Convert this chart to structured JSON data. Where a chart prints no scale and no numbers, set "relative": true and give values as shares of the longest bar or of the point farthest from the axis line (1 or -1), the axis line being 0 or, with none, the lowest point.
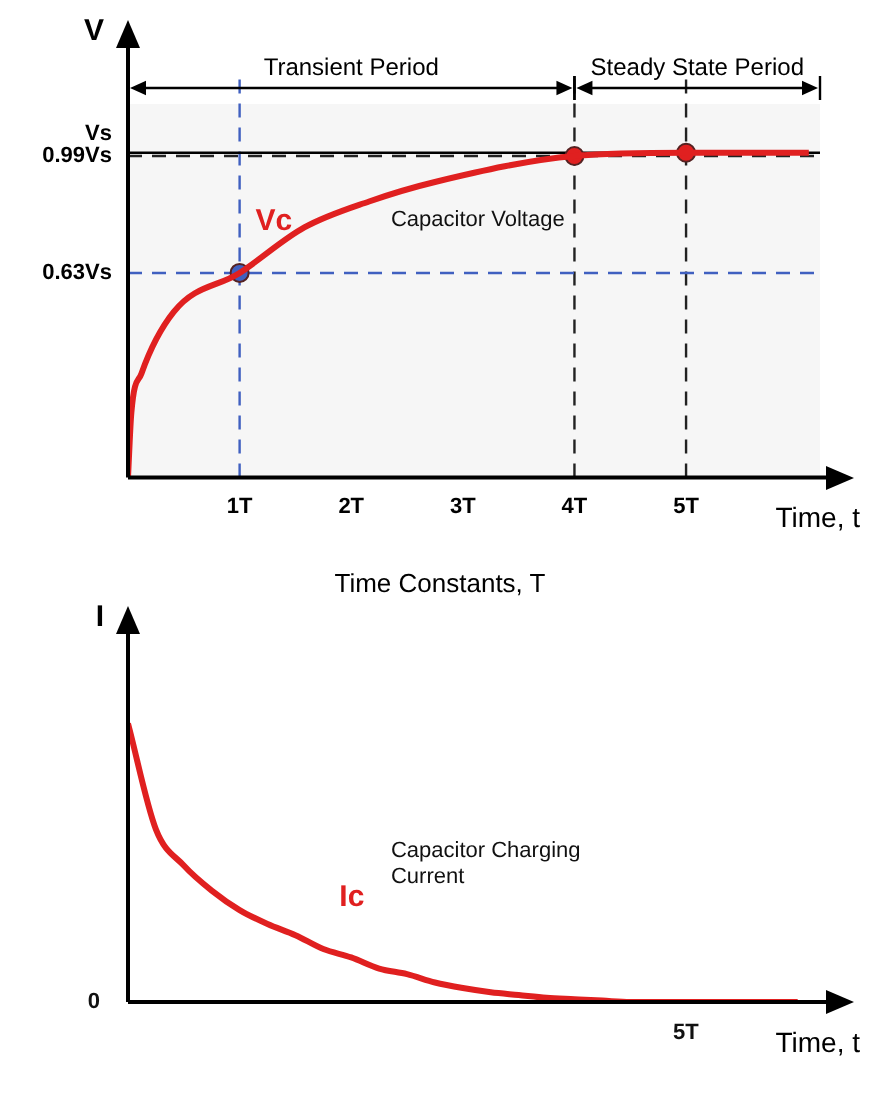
{
  "chart_data": [
    {
      "type": "line",
      "xlabel": "Time, t",
      "ylabel": "V",
      "annotations": [
        "Capacitor Voltage",
        "Time Constants, T"
      ],
      "xlim": [
        0,
        6.2
      ],
      "xticks": [
        {
          "value": 1,
          "label": "1T"
        },
        {
          "value": 2,
          "label": "2T"
        },
        {
          "value": 3,
          "label": "3T"
        },
        {
          "value": 4,
          "label": "4T"
        },
        {
          "value": 5,
          "label": "5T"
        }
      ],
      "ylim": [
        0,
        1.15
      ],
      "yticks": [
        {
          "value": 0.63,
          "label": "0.63Vs"
        },
        {
          "value": 0.99,
          "label": "0.99Vs"
        }
      ],
      "series": [
        {
          "name": "Vc",
          "color": "#e02020",
          "x": [
            0,
            0.03,
            0.12,
            0.41,
            1,
            1.58,
            2.16,
            2.75,
            4,
            5,
            6.1
          ],
          "values": [
            0,
            0.2,
            0.32,
            0.51,
            0.63,
            0.77,
            0.85,
            0.91,
            0.99,
            1,
            1
          ]
        },
        {
          "type": "scatter",
          "marker": "circle",
          "x": [
            1,
            4,
            5
          ],
          "values": [
            0.63,
            0.99,
            1
          ],
          "colors": [
            "#4060c0",
            "#e02020",
            "#e02020"
          ]
        }
      ],
      "ref_lines": [
        {
          "axis": "x",
          "value": 1,
          "color": "#4060c0",
          "line_style": "dashed"
        },
        {
          "axis": "x",
          "value": 4,
          "color": "#222222",
          "line_style": "dashed"
        },
        {
          "axis": "x",
          "value": 5,
          "color": "#222222",
          "line_style": "dashed"
        },
        {
          "axis": "y",
          "value": 0.63,
          "color": "#4060c0",
          "line_style": "dashed"
        },
        {
          "axis": "y",
          "value": 0.99,
          "color": "#222222",
          "line_style": "dashed"
        },
        {
          "axis": "y",
          "value": 1,
          "label": "Vs",
          "color": "#000000",
          "line_style": "solid"
        }
      ],
      "bands": [
        {
          "axis": "x",
          "from": 0,
          "to": 4,
          "label": "Transient Period"
        },
        {
          "axis": "x",
          "from": 4,
          "to": 6.2,
          "label": "Steady State Period"
        }
      ]
    },
    {
      "type": "line",
      "relative": true,
      "xlabel": "Time, t",
      "ylabel": "I",
      "annotations": [
        "Capacitor Charging Current",
        "0",
        "5T"
      ],
      "categories": [
        null,
        null,
        null,
        null,
        null,
        null,
        null,
        null,
        null,
        null,
        null,
        null,
        null,
        null,
        null,
        null,
        null,
        null,
        null,
        null,
        null,
        null,
        null,
        null,
        null
      ],
      "series": [
        {
          "name": "Ic",
          "color": "#e02020",
          "values": [
            1,
            0.62,
            0.49,
            0.4,
            0.33,
            0.28,
            0.24,
            0.19,
            0.16,
            0.12,
            0.1,
            0.07,
            0.05,
            0.035,
            0.025,
            0.015,
            0.01,
            0.005,
            0,
            0,
            0,
            0,
            0,
            0,
            0
          ]
        }
      ]
    }
  ]
}
